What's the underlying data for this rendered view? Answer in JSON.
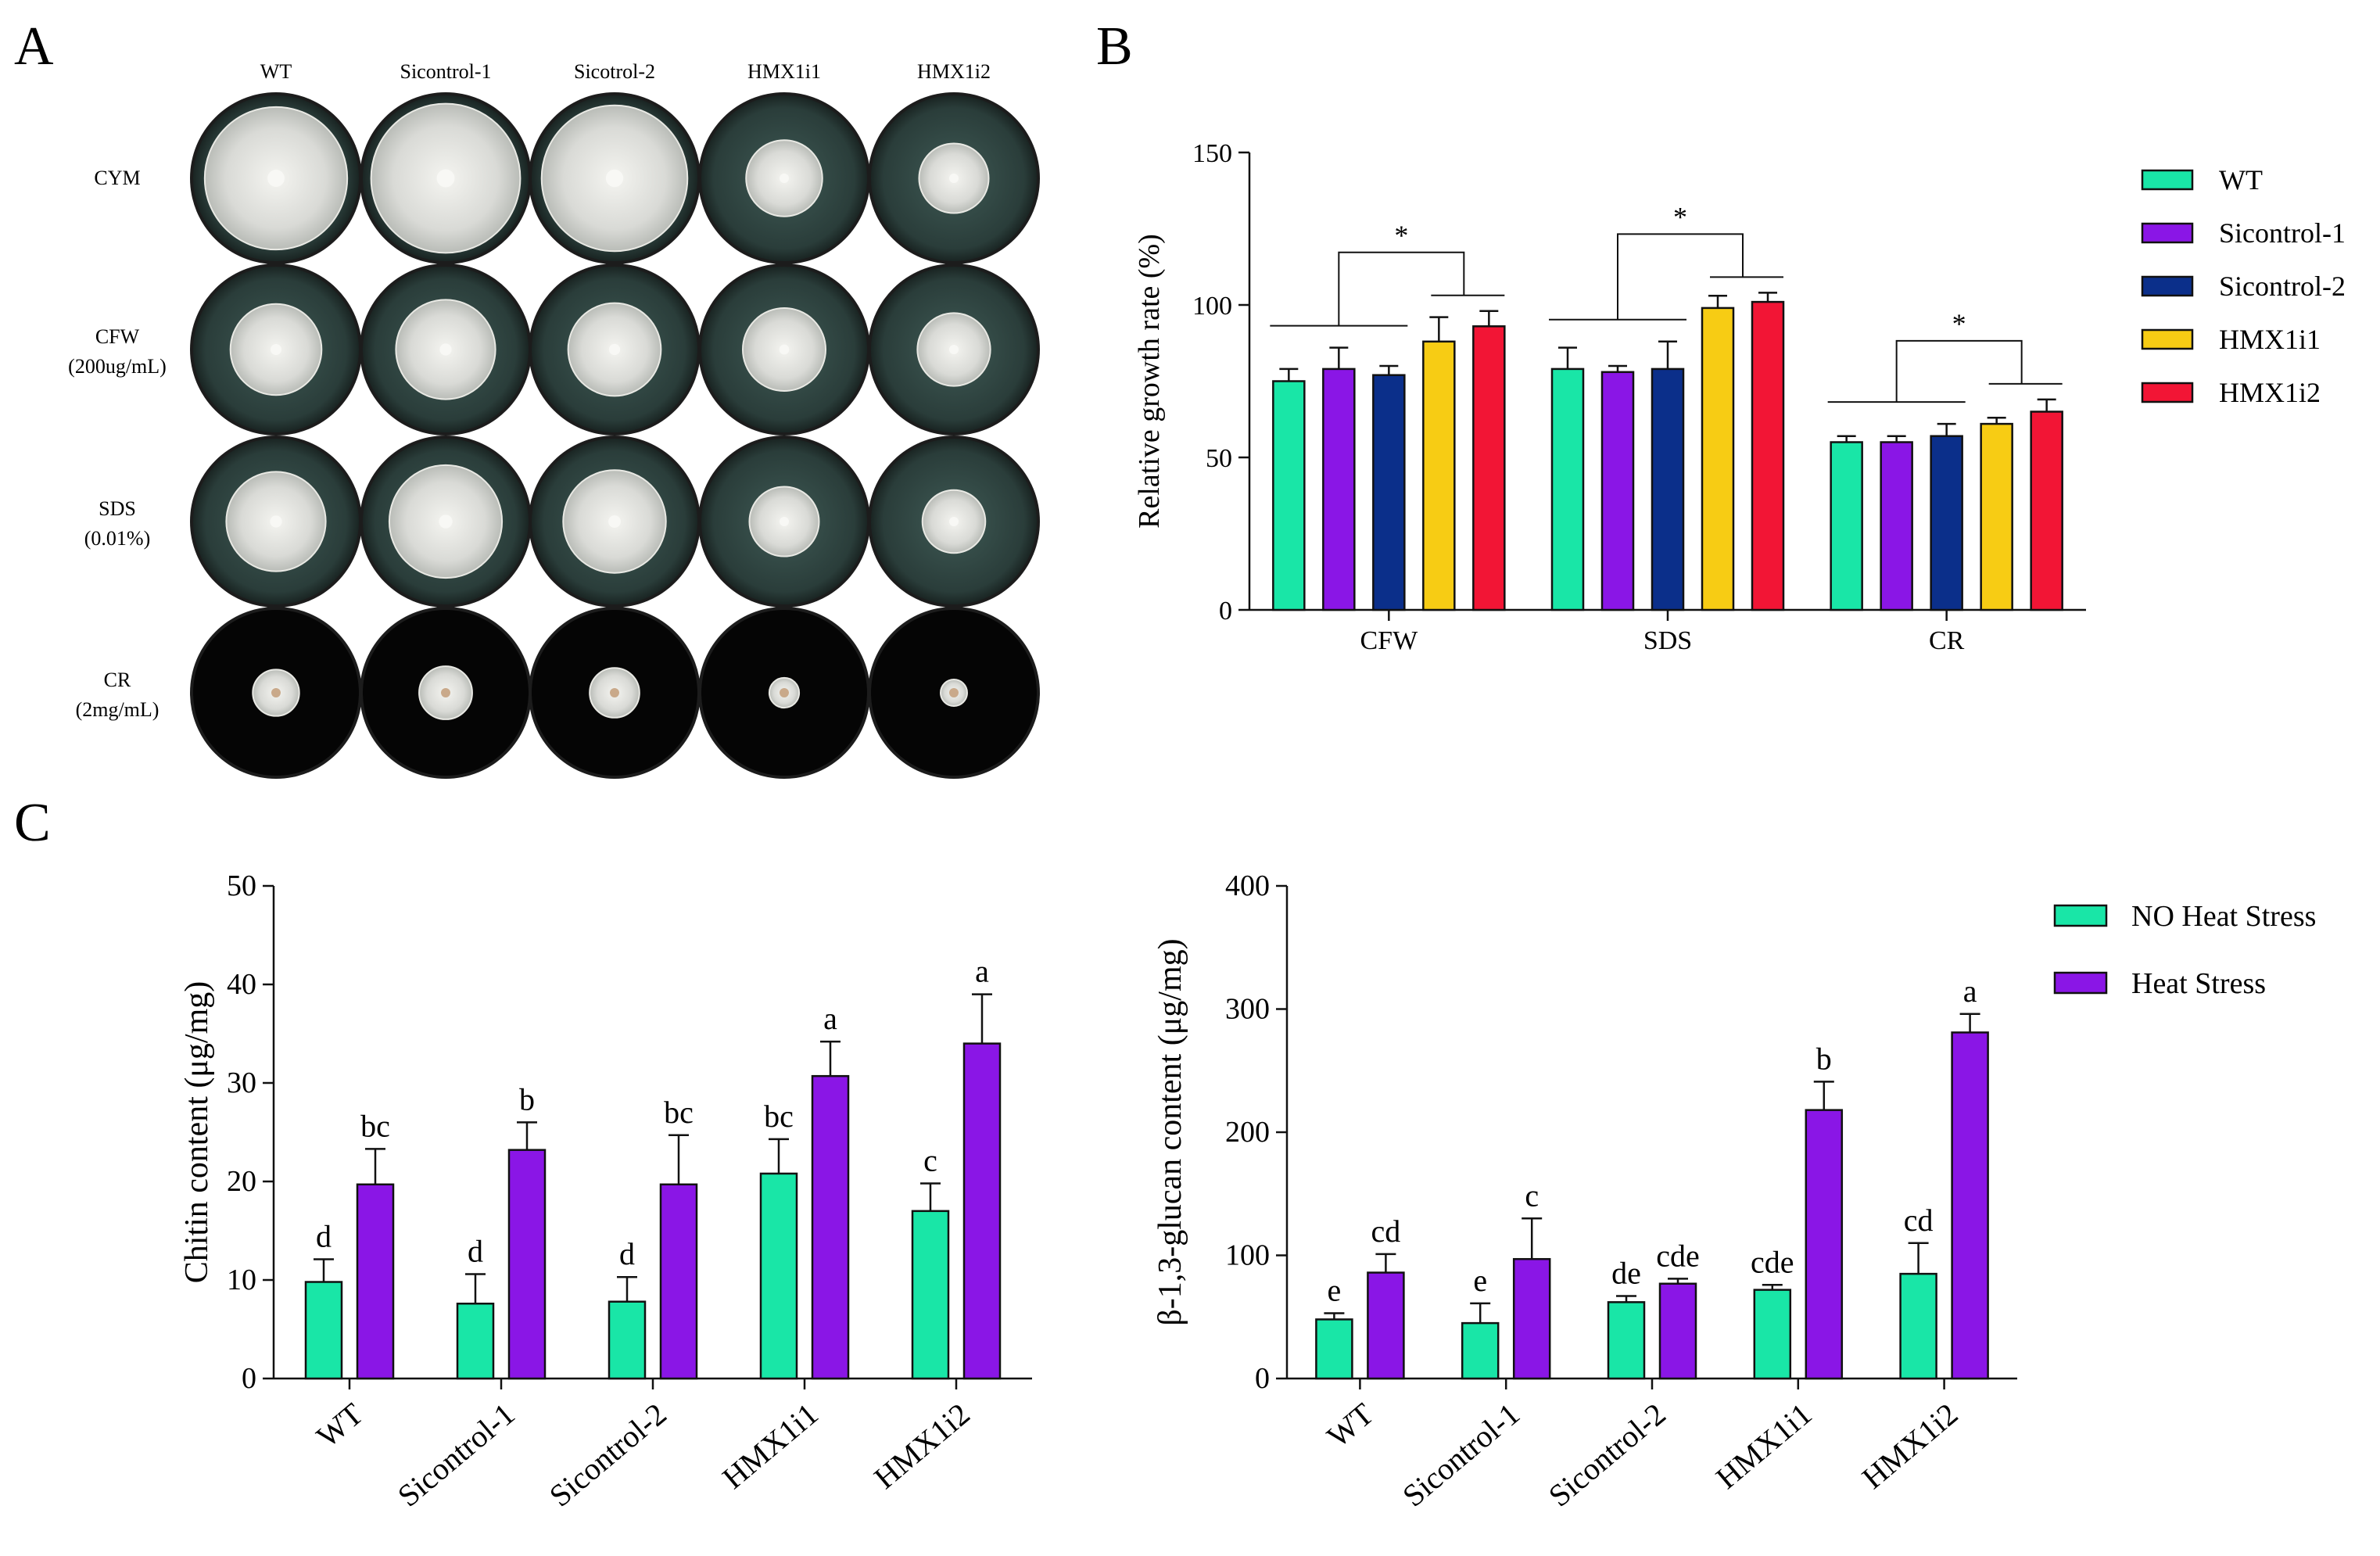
{
  "panel_labels": {
    "a": "A",
    "b": "B",
    "c": "C"
  },
  "plates": {
    "columns": [
      "WT",
      "Sicontrol-1",
      "Sicotrol-2",
      "HMX1i1",
      "HMX1i2"
    ],
    "rows": [
      {
        "label": "CYM",
        "sub": "",
        "bg": "dark",
        "sizes": [
          0.86,
          0.9,
          0.88,
          0.46,
          0.42
        ]
      },
      {
        "label": "CFW",
        "sub": "(200ug/mL)",
        "bg": "dark",
        "sizes": [
          0.55,
          0.6,
          0.56,
          0.5,
          0.44
        ]
      },
      {
        "label": "SDS",
        "sub": "(0.01%)",
        "bg": "dark",
        "sizes": [
          0.6,
          0.68,
          0.62,
          0.42,
          0.38
        ]
      },
      {
        "label": "CR",
        "sub": "(2mg/mL)",
        "bg": "black",
        "sizes": [
          0.28,
          0.32,
          0.3,
          0.18,
          0.16
        ]
      }
    ]
  },
  "chart_data": [
    {
      "type": "bar",
      "panel": "B",
      "categories": [
        "CFW",
        "SDS",
        "CR"
      ],
      "ylabel": "Relative growth rate (%)",
      "ylim": [
        0,
        150
      ],
      "yticks": [
        0,
        50,
        100,
        150
      ],
      "series": [
        {
          "name": "WT",
          "color": "#19e6a7",
          "values": [
            75,
            79,
            55
          ],
          "errors": [
            4,
            7,
            2
          ]
        },
        {
          "name": "Sicontrol-1",
          "color": "#8a16e6",
          "values": [
            79,
            78,
            55
          ],
          "errors": [
            7,
            2,
            2
          ]
        },
        {
          "name": "Sicontrol-2",
          "color": "#0b2f8a",
          "values": [
            77,
            79,
            57
          ],
          "errors": [
            3,
            9,
            4
          ]
        },
        {
          "name": "HMX1i1",
          "color": "#f7cc14",
          "values": [
            88,
            99,
            61
          ],
          "errors": [
            8,
            4,
            2
          ]
        },
        {
          "name": "HMX1i2",
          "color": "#f21535",
          "values": [
            93,
            101,
            65
          ],
          "errors": [
            5,
            3,
            4
          ]
        }
      ],
      "annotations": [
        "*",
        "*",
        "*"
      ],
      "legend": "right"
    },
    {
      "type": "bar",
      "panel": "C-left",
      "categories": [
        "WT",
        "Sicontrol-1",
        "Sicontrol-2",
        "HMX1i1",
        "HMX1i2"
      ],
      "ylabel": "Chitin content (μg/mg)",
      "ylim": [
        0,
        50
      ],
      "yticks": [
        0,
        10,
        20,
        30,
        40,
        50
      ],
      "series": [
        {
          "name": "NO Heat Stress",
          "color": "#19e6a7",
          "values": [
            9.8,
            7.6,
            7.8,
            20.8,
            17.0
          ],
          "errors": [
            2.3,
            3.0,
            2.5,
            3.5,
            2.8
          ],
          "letters": [
            "d",
            "d",
            "d",
            "bc",
            "c"
          ]
        },
        {
          "name": "Heat Stress",
          "color": "#8a16e6",
          "values": [
            19.7,
            23.2,
            19.7,
            30.7,
            34.0
          ],
          "errors": [
            3.6,
            2.8,
            5.0,
            3.5,
            5.0
          ],
          "letters": [
            "bc",
            "b",
            "bc",
            "a",
            "a"
          ]
        }
      ]
    },
    {
      "type": "bar",
      "panel": "C-right",
      "categories": [
        "WT",
        "Sicontrol-1",
        "Sicontrol-2",
        "HMX1i1",
        "HMX1i2"
      ],
      "ylabel": "β-1,3-glucan content (μg/mg)",
      "ylim": [
        0,
        400
      ],
      "yticks": [
        0,
        100,
        200,
        300,
        400
      ],
      "series": [
        {
          "name": "NO Heat Stress",
          "color": "#19e6a7",
          "values": [
            48,
            45,
            62,
            72,
            85
          ],
          "errors": [
            5,
            16,
            5,
            4,
            25
          ],
          "letters": [
            "e",
            "e",
            "de",
            "cde",
            "cd"
          ]
        },
        {
          "name": "Heat Stress",
          "color": "#8a16e6",
          "values": [
            86,
            97,
            77,
            218,
            281
          ],
          "errors": [
            15,
            33,
            4,
            23,
            15
          ],
          "letters": [
            "cd",
            "c",
            "cde",
            "b",
            "a"
          ]
        }
      ],
      "legend": "top-right"
    }
  ]
}
